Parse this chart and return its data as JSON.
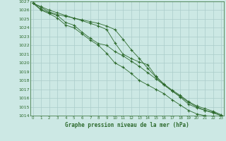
{
  "x": [
    0,
    1,
    2,
    3,
    4,
    5,
    6,
    7,
    8,
    9,
    10,
    11,
    12,
    13,
    14,
    15,
    16,
    17,
    18,
    19,
    20,
    21,
    22,
    23
  ],
  "line1": [
    1026.8,
    1026.3,
    1025.8,
    1025.5,
    1025.3,
    1025.1,
    1024.9,
    1024.7,
    1024.5,
    1024.2,
    1023.8,
    1022.7,
    1021.5,
    1020.5,
    1019.4,
    1018.4,
    1017.5,
    1016.8,
    1016.1,
    1015.3,
    1014.9,
    1014.6,
    1014.4,
    1014.0
  ],
  "line2": [
    1026.8,
    1026.4,
    1026.0,
    1025.7,
    1025.4,
    1025.1,
    1024.8,
    1024.5,
    1024.2,
    1023.8,
    1022.3,
    1021.0,
    1020.5,
    1020.1,
    1019.8,
    1018.5,
    1017.6,
    1016.9,
    1016.3,
    1015.6,
    1015.1,
    1014.8,
    1014.5,
    1014.1
  ],
  "line3": [
    1026.8,
    1026.1,
    1025.7,
    1025.4,
    1024.6,
    1024.3,
    1023.5,
    1022.8,
    1022.2,
    1022.0,
    1021.3,
    1020.8,
    1020.2,
    1019.6,
    1018.9,
    1018.2,
    1017.5,
    1016.8,
    1016.2,
    1015.5,
    1015.0,
    1014.6,
    1014.3,
    1014.0
  ],
  "line4": [
    1026.8,
    1026.0,
    1025.6,
    1025.1,
    1024.3,
    1024.0,
    1023.3,
    1022.6,
    1022.0,
    1021.1,
    1020.0,
    1019.5,
    1018.8,
    1018.0,
    1017.5,
    1017.0,
    1016.5,
    1015.8,
    1015.2,
    1014.6,
    1014.2,
    1014.0,
    1013.9,
    1013.8
  ],
  "line_color": "#2d6a2d",
  "bg_color": "#cce8e4",
  "grid_color": "#aaccca",
  "title": "Graphe pression niveau de la mer (hPa)",
  "ylim": [
    1014,
    1027
  ],
  "xlim": [
    -0.3,
    23.3
  ],
  "yticks": [
    1014,
    1015,
    1016,
    1017,
    1018,
    1019,
    1020,
    1021,
    1022,
    1023,
    1024,
    1025,
    1026,
    1027
  ],
  "xticks": [
    0,
    1,
    2,
    3,
    4,
    5,
    6,
    7,
    8,
    9,
    10,
    11,
    12,
    13,
    14,
    15,
    16,
    17,
    18,
    19,
    20,
    21,
    22,
    23
  ]
}
